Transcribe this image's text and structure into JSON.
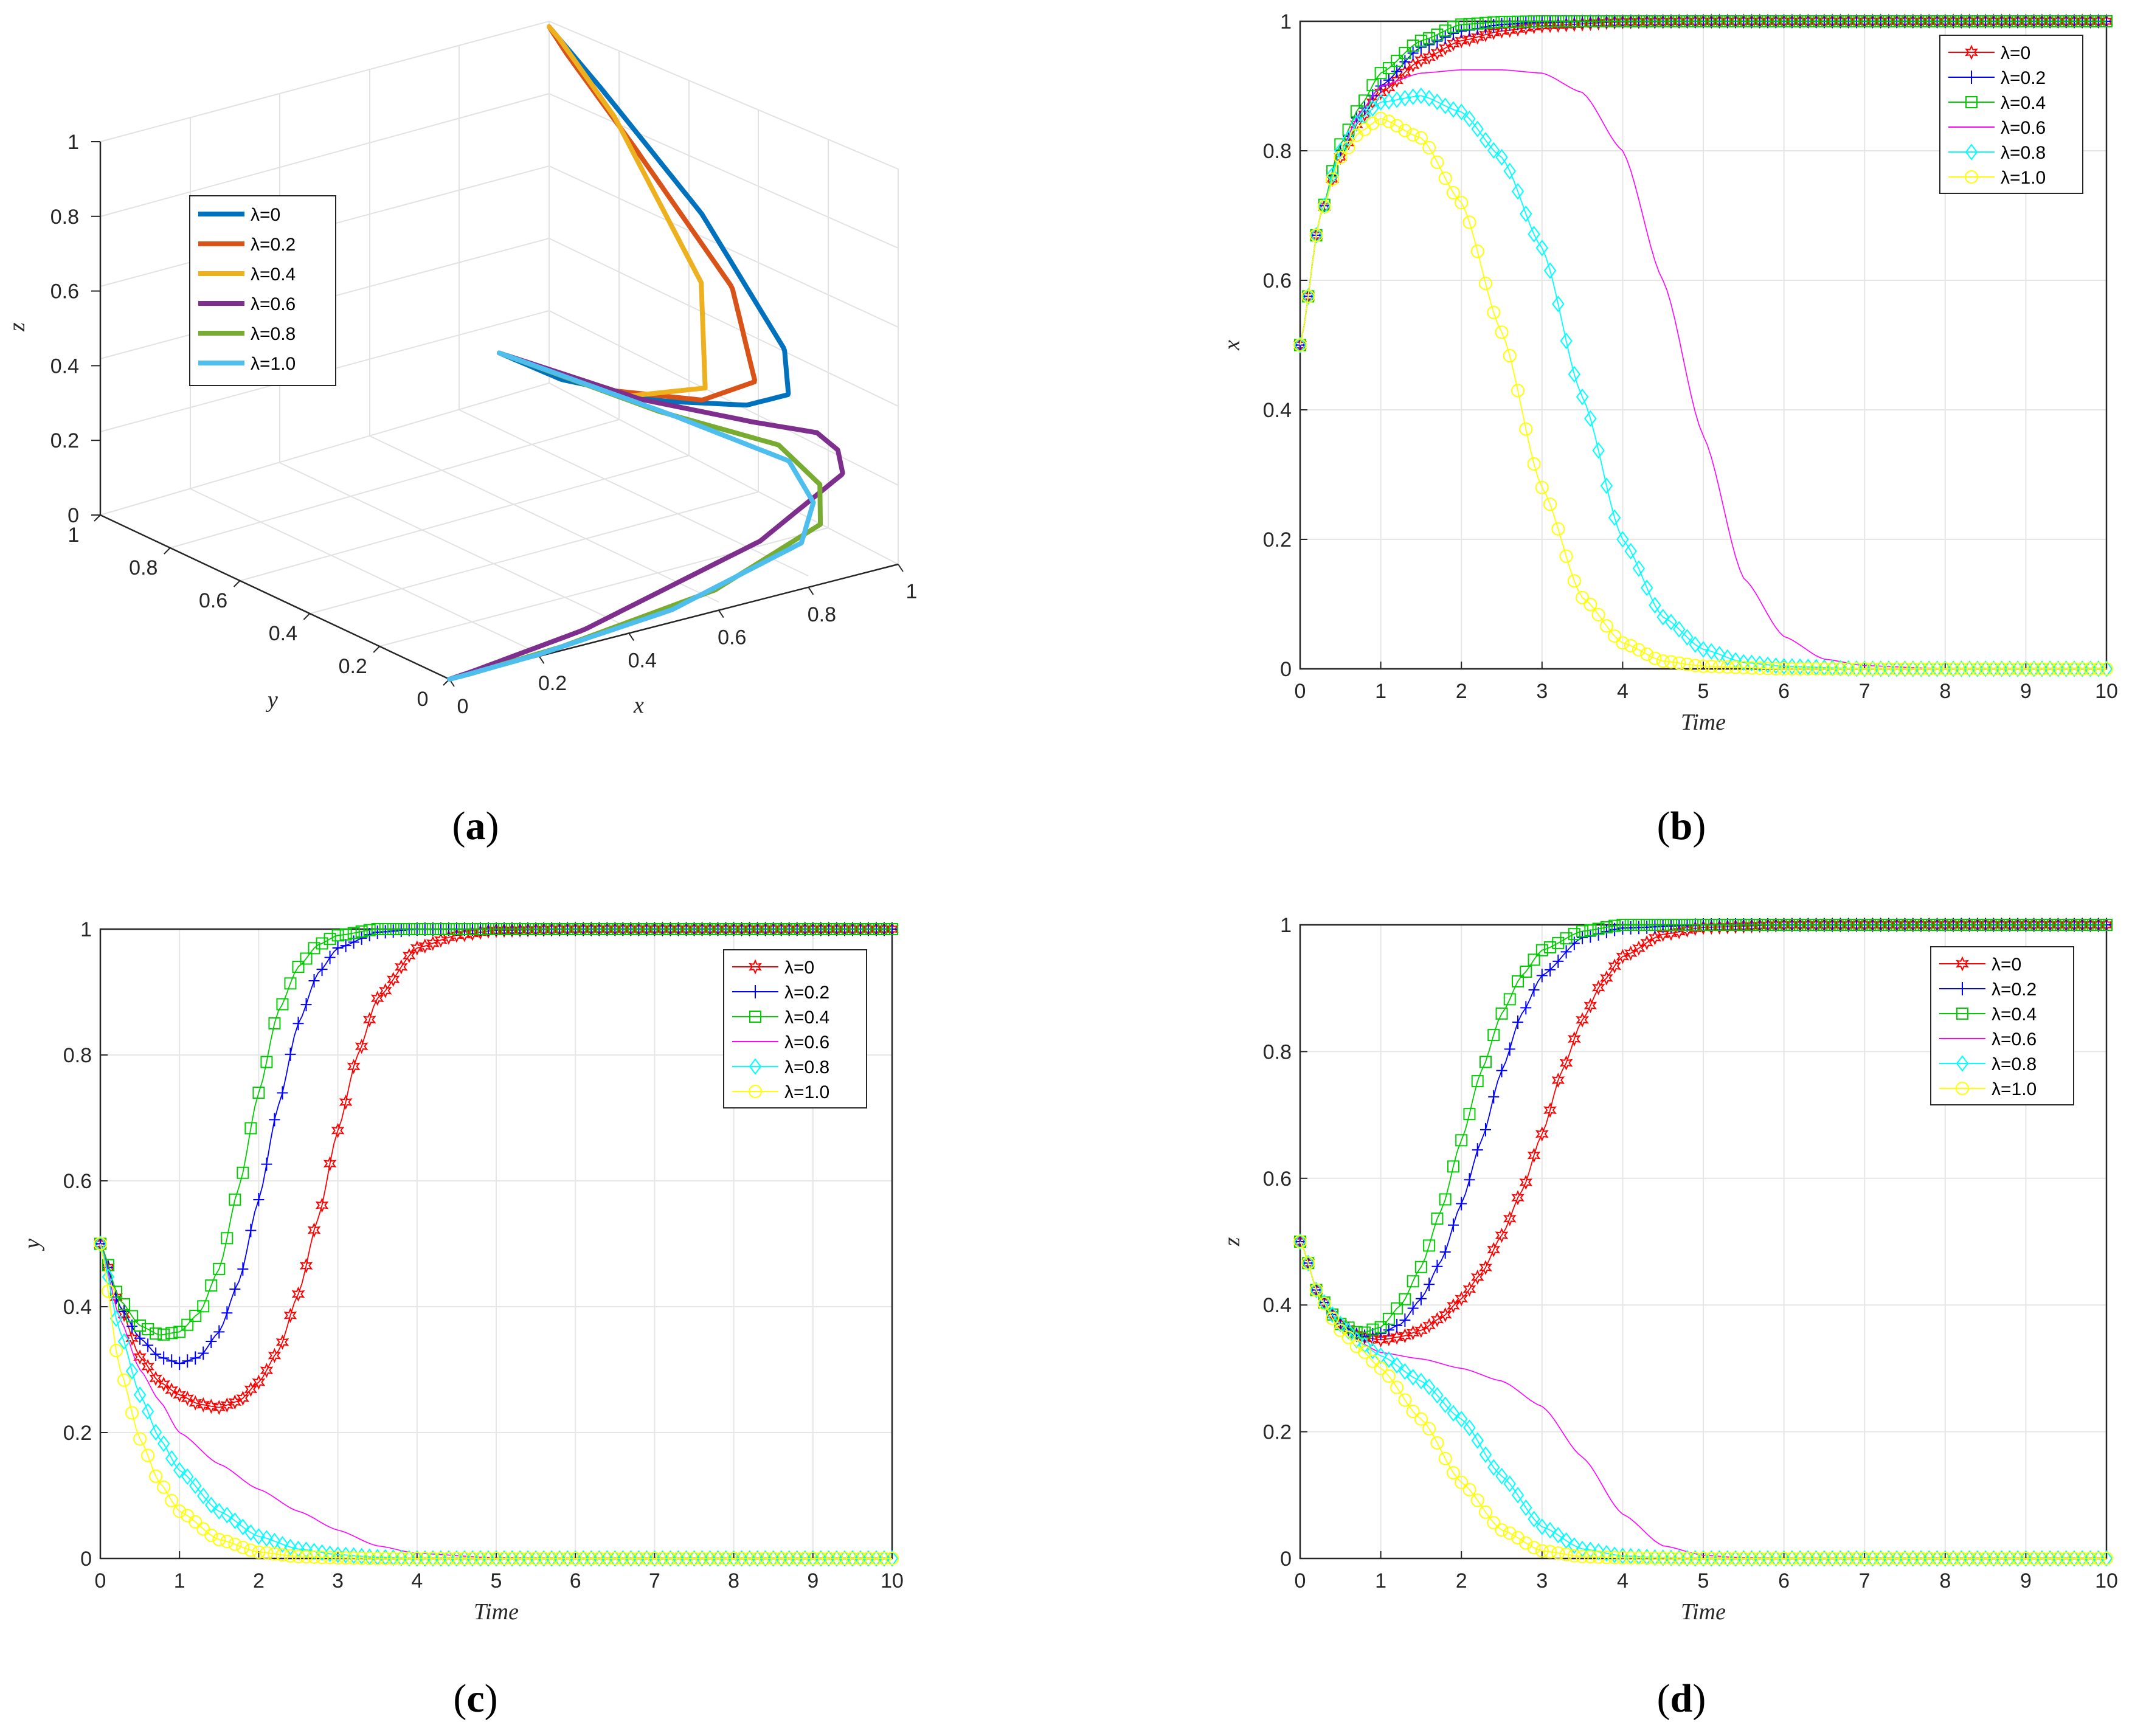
{
  "colors": {
    "l0": "#ff0000",
    "l02": "#0000ff",
    "l04": "#00cc00",
    "l06": "#ff00ff",
    "l08": "#00ffff",
    "l10": "#ffff00",
    "a0": "#0072bd",
    "a02": "#d95319",
    "a04": "#edb120",
    "a06": "#7e2f8e",
    "a08": "#77ac30",
    "a10": "#4dbeee"
  },
  "chart_data": [
    {
      "id": "a",
      "type": "line3d",
      "caption": {
        "open": "(",
        "letter": "a",
        "close": ")"
      },
      "xlabel": "x",
      "ylabel": "y",
      "zlabel": "z",
      "xlim": [
        0,
        1
      ],
      "ylim": [
        0,
        1
      ],
      "zlim": [
        0,
        1
      ],
      "x_ticks": [
        "0",
        "0.2",
        "0.4",
        "0.6",
        "0.8",
        "1"
      ],
      "y_ticks": [
        "0",
        "0.2",
        "0.4",
        "0.6",
        "0.8",
        "1"
      ],
      "z_ticks": [
        "0",
        "0.2",
        "0.4",
        "0.6",
        "0.8",
        "1"
      ],
      "legend": [
        "λ=0",
        "λ=0.2",
        "λ=0.4",
        "λ=0.6",
        "λ=0.8",
        "λ=1.0"
      ],
      "series": [
        {
          "name": "λ=0",
          "x": [
            0.5,
            0.6,
            0.75,
            0.88,
            0.95,
            0.98,
            0.99,
            1.0,
            1.0,
            1.0
          ],
          "y": [
            0.5,
            0.45,
            0.35,
            0.28,
            0.25,
            0.3,
            0.55,
            0.85,
            0.97,
            1.0
          ],
          "z": [
            0.5,
            0.42,
            0.36,
            0.34,
            0.36,
            0.45,
            0.7,
            0.9,
            0.98,
            1.0
          ]
        },
        {
          "name": "λ=0.2",
          "x": [
            0.5,
            0.65,
            0.82,
            0.93,
            0.98,
            0.99,
            1.0,
            1.0
          ],
          "y": [
            0.5,
            0.4,
            0.33,
            0.32,
            0.45,
            0.75,
            0.95,
            1.0
          ],
          "z": [
            0.5,
            0.4,
            0.35,
            0.37,
            0.55,
            0.8,
            0.95,
            1.0
          ]
        },
        {
          "name": "λ=0.4",
          "x": [
            0.5,
            0.68,
            0.85,
            0.95,
            0.99,
            1.0,
            1.0
          ],
          "y": [
            0.5,
            0.38,
            0.36,
            0.5,
            0.8,
            0.97,
            1.0
          ],
          "z": [
            0.5,
            0.38,
            0.36,
            0.55,
            0.85,
            0.98,
            1.0
          ]
        },
        {
          "name": "λ=0.6",
          "x": [
            0.5,
            0.7,
            0.85,
            0.92,
            0.92,
            0.9,
            0.7,
            0.3,
            0.05,
            0.0
          ],
          "y": [
            0.5,
            0.35,
            0.22,
            0.13,
            0.07,
            0.03,
            0.01,
            0.0,
            0.0,
            0.0
          ],
          "z": [
            0.5,
            0.38,
            0.33,
            0.32,
            0.3,
            0.26,
            0.15,
            0.04,
            0.005,
            0.0
          ]
        },
        {
          "name": "λ=0.8",
          "x": [
            0.5,
            0.7,
            0.85,
            0.88,
            0.85,
            0.6,
            0.25,
            0.05,
            0.0
          ],
          "y": [
            0.5,
            0.3,
            0.15,
            0.07,
            0.03,
            0.01,
            0.0,
            0.0,
            0.0
          ],
          "z": [
            0.5,
            0.37,
            0.3,
            0.22,
            0.14,
            0.05,
            0.01,
            0.0,
            0.0
          ]
        },
        {
          "name": "λ=1.0",
          "x": [
            0.5,
            0.72,
            0.85,
            0.85,
            0.8,
            0.5,
            0.2,
            0.03,
            0.0
          ],
          "y": [
            0.5,
            0.28,
            0.12,
            0.05,
            0.02,
            0.005,
            0.0,
            0.0,
            0.0
          ],
          "z": [
            0.5,
            0.36,
            0.27,
            0.19,
            0.11,
            0.03,
            0.005,
            0.0,
            0.0
          ]
        }
      ]
    },
    {
      "id": "b",
      "type": "line",
      "caption": {
        "open": "(",
        "letter": "b",
        "close": ")"
      },
      "xlabel": "Time",
      "ylabel": "x",
      "xlim": [
        0,
        10
      ],
      "ylim": [
        0,
        1
      ],
      "x_ticks": [
        "0",
        "1",
        "2",
        "3",
        "4",
        "5",
        "6",
        "7",
        "8",
        "9",
        "10"
      ],
      "y_ticks": [
        "0",
        "0.2",
        "0.4",
        "0.6",
        "0.8",
        "1"
      ],
      "legend": [
        "λ=0",
        "λ=0.2",
        "λ=0.4",
        "λ=0.6",
        "λ=0.8",
        "λ=1.0"
      ],
      "series": [
        {
          "name": "λ=0",
          "marker": "star",
          "x": [
            0,
            0.25,
            0.5,
            0.75,
            1,
            1.5,
            2,
            2.5,
            3,
            4,
            5,
            6,
            8,
            10
          ],
          "y": [
            0.5,
            0.7,
            0.79,
            0.85,
            0.89,
            0.94,
            0.97,
            0.985,
            0.993,
            0.999,
            1,
            1,
            1,
            1
          ]
        },
        {
          "name": "λ=0.2",
          "marker": "plus",
          "x": [
            0,
            0.25,
            0.5,
            0.75,
            1,
            1.5,
            2,
            2.5,
            3,
            4,
            5,
            6,
            8,
            10
          ],
          "y": [
            0.5,
            0.7,
            0.8,
            0.86,
            0.9,
            0.96,
            0.985,
            0.995,
            0.999,
            1,
            1,
            1,
            1,
            1
          ]
        },
        {
          "name": "λ=0.4",
          "marker": "square",
          "x": [
            0,
            0.25,
            0.5,
            0.75,
            1,
            1.5,
            2,
            2.5,
            3,
            4,
            5,
            6,
            8,
            10
          ],
          "y": [
            0.5,
            0.7,
            0.81,
            0.87,
            0.92,
            0.97,
            0.995,
            0.999,
            1,
            1,
            1,
            1,
            1,
            1
          ]
        },
        {
          "name": "λ=0.6",
          "marker": "none",
          "x": [
            0,
            0.25,
            0.5,
            0.75,
            1,
            1.5,
            2,
            2.5,
            3,
            3.5,
            4,
            4.5,
            5,
            5.5,
            6,
            6.5,
            7,
            8,
            10
          ],
          "y": [
            0.5,
            0.7,
            0.8,
            0.86,
            0.9,
            0.92,
            0.925,
            0.925,
            0.92,
            0.89,
            0.8,
            0.6,
            0.36,
            0.14,
            0.05,
            0.015,
            0.005,
            0,
            0
          ]
        },
        {
          "name": "λ=0.8",
          "marker": "diamond",
          "x": [
            0,
            0.25,
            0.5,
            0.75,
            1,
            1.5,
            2,
            2.5,
            3,
            3.5,
            4,
            4.5,
            5,
            5.5,
            6,
            7,
            8,
            10
          ],
          "y": [
            0.5,
            0.7,
            0.8,
            0.85,
            0.875,
            0.885,
            0.86,
            0.79,
            0.65,
            0.42,
            0.2,
            0.08,
            0.03,
            0.01,
            0.004,
            0,
            0,
            0
          ]
        },
        {
          "name": "λ=1.0",
          "marker": "circle",
          "x": [
            0,
            0.25,
            0.5,
            0.75,
            1,
            1.5,
            2,
            2.5,
            3,
            3.5,
            4,
            4.5,
            5,
            6,
            7,
            8,
            10
          ],
          "y": [
            0.5,
            0.7,
            0.79,
            0.83,
            0.85,
            0.82,
            0.72,
            0.52,
            0.28,
            0.11,
            0.04,
            0.012,
            0.004,
            0,
            0,
            0,
            0
          ]
        }
      ]
    },
    {
      "id": "c",
      "type": "line",
      "caption": {
        "open": "(",
        "letter": "c",
        "close": ")"
      },
      "xlabel": "Time",
      "ylabel": "y",
      "xlim": [
        0,
        10
      ],
      "ylim": [
        0,
        1
      ],
      "x_ticks": [
        "0",
        "1",
        "2",
        "3",
        "4",
        "5",
        "6",
        "7",
        "8",
        "9",
        "10"
      ],
      "y_ticks": [
        "0",
        "0.2",
        "0.4",
        "0.6",
        "0.8",
        "1"
      ],
      "legend": [
        "λ=0",
        "λ=0.2",
        "λ=0.4",
        "λ=0.6",
        "λ=0.8",
        "λ=1.0"
      ],
      "series": [
        {
          "name": "λ=0",
          "marker": "star",
          "x": [
            0,
            0.25,
            0.5,
            0.75,
            1,
            1.25,
            1.5,
            1.75,
            2,
            2.25,
            2.5,
            2.75,
            3,
            3.25,
            3.5,
            4,
            4.5,
            5,
            6,
            8,
            10
          ],
          "y": [
            0.5,
            0.4,
            0.32,
            0.28,
            0.26,
            0.245,
            0.24,
            0.25,
            0.28,
            0.33,
            0.42,
            0.54,
            0.68,
            0.8,
            0.89,
            0.97,
            0.99,
            0.998,
            1,
            1,
            1
          ]
        },
        {
          "name": "λ=0.2",
          "marker": "plus",
          "x": [
            0,
            0.25,
            0.5,
            0.75,
            1,
            1.25,
            1.5,
            1.75,
            2,
            2.25,
            2.5,
            2.75,
            3,
            3.5,
            4,
            5,
            6,
            8,
            10
          ],
          "y": [
            0.5,
            0.4,
            0.35,
            0.32,
            0.31,
            0.32,
            0.36,
            0.44,
            0.57,
            0.72,
            0.85,
            0.93,
            0.97,
            0.995,
            1,
            1,
            1,
            1,
            1
          ]
        },
        {
          "name": "λ=0.4",
          "marker": "square",
          "x": [
            0,
            0.25,
            0.5,
            0.75,
            1,
            1.25,
            1.5,
            1.75,
            2,
            2.25,
            2.5,
            2.75,
            3,
            3.5,
            4,
            5,
            6,
            8,
            10
          ],
          "y": [
            0.5,
            0.41,
            0.37,
            0.355,
            0.36,
            0.39,
            0.46,
            0.59,
            0.74,
            0.87,
            0.94,
            0.975,
            0.99,
            1,
            1,
            1,
            1,
            1,
            1
          ]
        },
        {
          "name": "λ=0.6",
          "marker": "none",
          "x": [
            0,
            0.25,
            0.5,
            0.75,
            1,
            1.5,
            2,
            2.5,
            3,
            3.5,
            4,
            5,
            6,
            8,
            10
          ],
          "y": [
            0.5,
            0.38,
            0.3,
            0.25,
            0.2,
            0.15,
            0.11,
            0.075,
            0.045,
            0.02,
            0.008,
            0.001,
            0,
            0,
            0
          ]
        },
        {
          "name": "λ=0.8",
          "marker": "diamond",
          "x": [
            0,
            0.25,
            0.5,
            0.75,
            1,
            1.5,
            2,
            2.5,
            3,
            3.5,
            4,
            5,
            6,
            8,
            10
          ],
          "y": [
            0.5,
            0.36,
            0.26,
            0.19,
            0.14,
            0.075,
            0.035,
            0.015,
            0.006,
            0.002,
            0,
            0,
            0,
            0,
            0
          ]
        },
        {
          "name": "λ=1.0",
          "marker": "circle",
          "x": [
            0,
            0.25,
            0.5,
            0.75,
            1,
            1.5,
            2,
            2.5,
            3,
            3.5,
            4,
            5,
            6,
            8,
            10
          ],
          "y": [
            0.5,
            0.3,
            0.19,
            0.12,
            0.075,
            0.03,
            0.01,
            0.003,
            0.001,
            0,
            0,
            0,
            0,
            0,
            0
          ]
        }
      ]
    },
    {
      "id": "d",
      "type": "line",
      "caption": {
        "open": "(",
        "letter": "d",
        "close": ")"
      },
      "xlabel": "Time",
      "ylabel": "z",
      "xlim": [
        0,
        10
      ],
      "ylim": [
        0,
        1
      ],
      "x_ticks": [
        "0",
        "1",
        "2",
        "3",
        "4",
        "5",
        "6",
        "7",
        "8",
        "9",
        "10"
      ],
      "y_ticks": [
        "0",
        "0.2",
        "0.4",
        "0.6",
        "0.8",
        "1"
      ],
      "legend": [
        "λ=0",
        "λ=0.2",
        "λ=0.4",
        "λ=0.6",
        "λ=0.8",
        "λ=1.0"
      ],
      "series": [
        {
          "name": "λ=0",
          "marker": "star",
          "x": [
            0,
            0.25,
            0.5,
            0.75,
            1,
            1.25,
            1.5,
            1.75,
            2,
            2.25,
            2.5,
            2.75,
            3,
            3.25,
            3.5,
            3.75,
            4,
            4.5,
            5,
            6,
            8,
            10
          ],
          "y": [
            0.5,
            0.41,
            0.37,
            0.35,
            0.345,
            0.35,
            0.36,
            0.38,
            0.41,
            0.45,
            0.51,
            0.58,
            0.67,
            0.77,
            0.85,
            0.91,
            0.95,
            0.985,
            0.996,
            1,
            1,
            1
          ]
        },
        {
          "name": "λ=0.2",
          "marker": "plus",
          "x": [
            0,
            0.25,
            0.5,
            0.75,
            1,
            1.25,
            1.5,
            1.75,
            2,
            2.25,
            2.5,
            2.75,
            3,
            3.5,
            4,
            5,
            6,
            8,
            10
          ],
          "y": [
            0.5,
            0.41,
            0.37,
            0.35,
            0.355,
            0.37,
            0.41,
            0.47,
            0.56,
            0.66,
            0.77,
            0.86,
            0.92,
            0.98,
            0.995,
            1,
            1,
            1,
            1
          ]
        },
        {
          "name": "λ=0.4",
          "marker": "square",
          "x": [
            0,
            0.25,
            0.5,
            0.75,
            1,
            1.25,
            1.5,
            1.75,
            2,
            2.25,
            2.5,
            2.75,
            3,
            3.5,
            4,
            5,
            6,
            8,
            10
          ],
          "y": [
            0.5,
            0.41,
            0.37,
            0.355,
            0.365,
            0.4,
            0.46,
            0.55,
            0.66,
            0.77,
            0.86,
            0.92,
            0.96,
            0.99,
            1,
            1,
            1,
            1,
            1
          ]
        },
        {
          "name": "λ=0.6",
          "marker": "none",
          "x": [
            0,
            0.25,
            0.5,
            0.75,
            1,
            1.5,
            2,
            2.5,
            3,
            3.5,
            4,
            4.5,
            5,
            5.5,
            6,
            8,
            10
          ],
          "y": [
            0.5,
            0.41,
            0.37,
            0.34,
            0.325,
            0.315,
            0.3,
            0.28,
            0.24,
            0.16,
            0.07,
            0.02,
            0.005,
            0.001,
            0,
            0,
            0
          ]
        },
        {
          "name": "λ=0.8",
          "marker": "diamond",
          "x": [
            0,
            0.25,
            0.5,
            0.75,
            1,
            1.5,
            2,
            2.5,
            3,
            3.5,
            4,
            4.5,
            5,
            6,
            8,
            10
          ],
          "y": [
            0.5,
            0.41,
            0.37,
            0.34,
            0.32,
            0.28,
            0.22,
            0.13,
            0.05,
            0.015,
            0.004,
            0.001,
            0,
            0,
            0,
            0
          ]
        },
        {
          "name": "λ=1.0",
          "marker": "circle",
          "x": [
            0,
            0.25,
            0.5,
            0.75,
            1,
            1.5,
            2,
            2.5,
            3,
            3.5,
            4,
            5,
            6,
            8,
            10
          ],
          "y": [
            0.5,
            0.41,
            0.36,
            0.33,
            0.3,
            0.22,
            0.12,
            0.045,
            0.012,
            0.003,
            0.001,
            0,
            0,
            0,
            0
          ]
        }
      ]
    }
  ]
}
